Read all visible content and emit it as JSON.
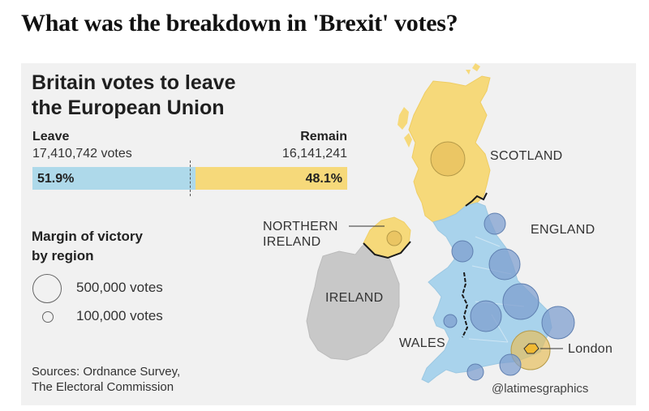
{
  "page_heading": "What was the breakdown in 'Brexit' votes?",
  "graphic": {
    "title_line1": "Britain votes to leave",
    "title_line2": "the European Union",
    "leave": {
      "label": "Leave",
      "votes": "17,410,742 votes",
      "pct": "51.9%",
      "share": 0.519
    },
    "remain": {
      "label": "Remain",
      "votes": "16,141,241",
      "pct": "48.1%",
      "share": 0.481
    },
    "legend": {
      "title_line1": "Margin of victory",
      "title_line2": "by region",
      "large_label": "500,000 votes",
      "small_label": "100,000 votes"
    },
    "sources_line1": "Sources: Ordnance Survey,",
    "sources_line2": "The Electoral Commission",
    "credit": "@latimesgraphics"
  },
  "map_labels": {
    "scotland": "SCOTLAND",
    "northern_ireland_line1": "NORTHERN",
    "northern_ireland_line2": "IRELAND",
    "england": "ENGLAND",
    "ireland": "IRELAND",
    "wales": "WALES",
    "london": "London"
  },
  "colors": {
    "leave": "#aed9ea",
    "remain": "#f6d97a",
    "leave_region": "#a9d3ec",
    "leave_circle": "#7f9fcf",
    "remain_circle": "#e7bf5e",
    "ireland": "#c8c8c8",
    "panel": "#f1f1f1"
  }
}
